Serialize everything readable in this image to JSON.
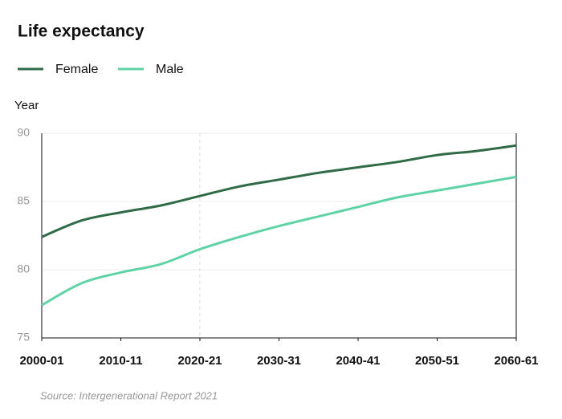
{
  "chart_data": {
    "type": "line",
    "title": "Life expectancy",
    "y_label": "Year",
    "source": "Source: Intergenerational Report 2021",
    "x": [
      2000,
      2005,
      2010,
      2015,
      2020,
      2025,
      2030,
      2035,
      2040,
      2045,
      2050,
      2055,
      2060
    ],
    "series": [
      {
        "name": "Female",
        "color": "#2e6b46",
        "values": [
          82.4,
          83.6,
          84.2,
          84.7,
          85.4,
          86.1,
          86.6,
          87.1,
          87.5,
          87.9,
          88.4,
          88.7,
          89.1
        ]
      },
      {
        "name": "Male",
        "color": "#5fd3a6",
        "values": [
          77.4,
          79.0,
          79.8,
          80.4,
          81.5,
          82.4,
          83.2,
          83.9,
          84.6,
          85.3,
          85.8,
          86.3,
          86.8
        ]
      }
    ],
    "xlim": [
      2000,
      2060
    ],
    "xticks": [
      {
        "value": 2000,
        "label": "2000-01"
      },
      {
        "value": 2010,
        "label": "2010-11"
      },
      {
        "value": 2020,
        "label": "2020-21"
      },
      {
        "value": 2030,
        "label": "2030-31"
      },
      {
        "value": 2040,
        "label": "2040-41"
      },
      {
        "value": 2050,
        "label": "2050-51"
      },
      {
        "value": 2060,
        "label": "2060-61"
      }
    ],
    "ylim": [
      75,
      90
    ],
    "yticks": [
      75,
      80,
      85,
      90
    ],
    "grid": true,
    "vline_x": 2020
  }
}
